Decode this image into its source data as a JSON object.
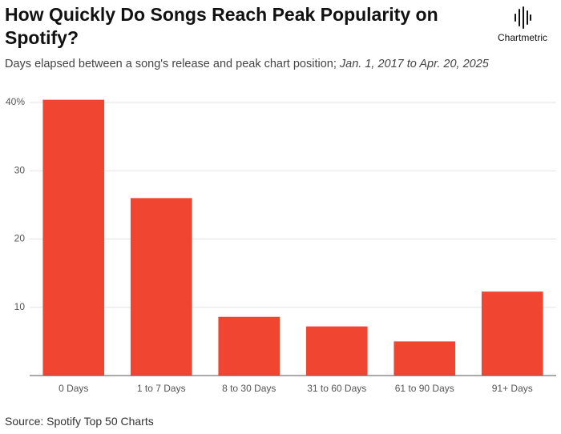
{
  "chart_data": {
    "type": "bar",
    "title": "How Quickly Do Songs Reach Peak Popularity on Spotify?",
    "subtitle": "Days elapsed between a song's release and peak chart position; ",
    "subtitle_dates": "Jan. 1, 2017 to Apr. 20, 2025",
    "brand": "Chartmetric",
    "source": "Source: Spotify Top 50 Charts",
    "categories": [
      "0 Days",
      "1 to 7 Days",
      "8 to 30 Days",
      "31 to 60 Days",
      "61 to 90 Days",
      "91+ Days"
    ],
    "values": [
      40.4,
      26.0,
      8.6,
      7.2,
      5.0,
      12.3
    ],
    "color": "#f04631",
    "ylim": [
      0,
      41
    ],
    "yticks": [
      10,
      20,
      30,
      {
        "value": 40,
        "label": "40%"
      }
    ],
    "grid": true
  }
}
